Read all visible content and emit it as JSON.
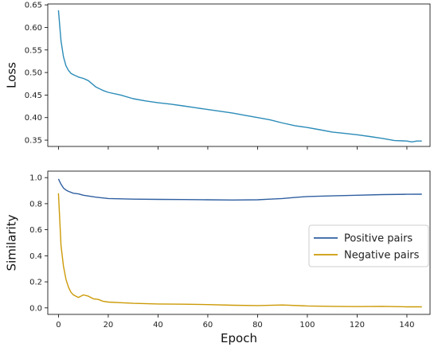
{
  "chart_data": [
    {
      "type": "line",
      "xlabel": "",
      "ylabel": "Loss",
      "xlim": [
        -4.3,
        149.3
      ],
      "ylim": [
        0.336,
        0.652
      ],
      "xticks": [
        0,
        20,
        40,
        60,
        80,
        100,
        120,
        140
      ],
      "xtick_labels_visible": false,
      "yticks": [
        0.35,
        0.4,
        0.45,
        0.5,
        0.55,
        0.6,
        0.65
      ],
      "ytick_labels": [
        "0.35",
        "0.40",
        "0.45",
        "0.50",
        "0.55",
        "0.60",
        "0.65"
      ],
      "grid": false,
      "series": [
        {
          "color": "#2b8bb8",
          "x": [
            0,
            1,
            2,
            3,
            4,
            5,
            6,
            8,
            10,
            12,
            15,
            18,
            20,
            25,
            30,
            35,
            40,
            45,
            50,
            55,
            60,
            65,
            70,
            75,
            80,
            85,
            90,
            95,
            100,
            105,
            110,
            115,
            120,
            125,
            130,
            135,
            140,
            142,
            144,
            146
          ],
          "y": [
            0.638,
            0.57,
            0.535,
            0.515,
            0.505,
            0.498,
            0.495,
            0.49,
            0.487,
            0.482,
            0.468,
            0.46,
            0.456,
            0.45,
            0.442,
            0.437,
            0.433,
            0.43,
            0.426,
            0.422,
            0.418,
            0.414,
            0.41,
            0.405,
            0.4,
            0.395,
            0.388,
            0.382,
            0.378,
            0.373,
            0.368,
            0.365,
            0.362,
            0.358,
            0.354,
            0.349,
            0.348,
            0.346,
            0.348,
            0.348
          ]
        }
      ]
    },
    {
      "type": "line",
      "xlabel": "Epoch",
      "ylabel": "Similarity",
      "xlim": [
        -4.3,
        149.3
      ],
      "ylim": [
        -0.05,
        1.05
      ],
      "xticks": [
        0,
        20,
        40,
        60,
        80,
        100,
        120,
        140
      ],
      "xtick_labels": [
        "0",
        "20",
        "40",
        "60",
        "80",
        "100",
        "120",
        "140"
      ],
      "yticks": [
        0.0,
        0.2,
        0.4,
        0.6,
        0.8,
        1.0
      ],
      "ytick_labels": [
        "0.0",
        "0.2",
        "0.4",
        "0.6",
        "0.8",
        "1.0"
      ],
      "grid": false,
      "legend_position": "center-right",
      "series": [
        {
          "name": "Positive pairs",
          "color": "#2f5fa0",
          "x": [
            0,
            1,
            2,
            3,
            4,
            6,
            8,
            10,
            15,
            20,
            30,
            40,
            50,
            60,
            70,
            80,
            85,
            90,
            95,
            100,
            110,
            120,
            130,
            140,
            146
          ],
          "y": [
            0.99,
            0.95,
            0.92,
            0.905,
            0.895,
            0.88,
            0.875,
            0.865,
            0.85,
            0.84,
            0.835,
            0.833,
            0.832,
            0.83,
            0.828,
            0.83,
            0.835,
            0.84,
            0.848,
            0.855,
            0.86,
            0.865,
            0.87,
            0.872,
            0.873
          ]
        },
        {
          "name": "Negative pairs",
          "color": "#cc9a06",
          "x": [
            0,
            1,
            2,
            3,
            4,
            5,
            6,
            8,
            10,
            12,
            14,
            16,
            18,
            20,
            25,
            30,
            40,
            50,
            60,
            70,
            80,
            90,
            100,
            110,
            120,
            130,
            140,
            146
          ],
          "y": [
            0.88,
            0.48,
            0.32,
            0.22,
            0.16,
            0.12,
            0.1,
            0.08,
            0.1,
            0.09,
            0.07,
            0.065,
            0.05,
            0.045,
            0.04,
            0.035,
            0.03,
            0.028,
            0.025,
            0.02,
            0.018,
            0.022,
            0.015,
            0.012,
            0.01,
            0.012,
            0.008,
            0.008
          ]
        }
      ]
    }
  ]
}
